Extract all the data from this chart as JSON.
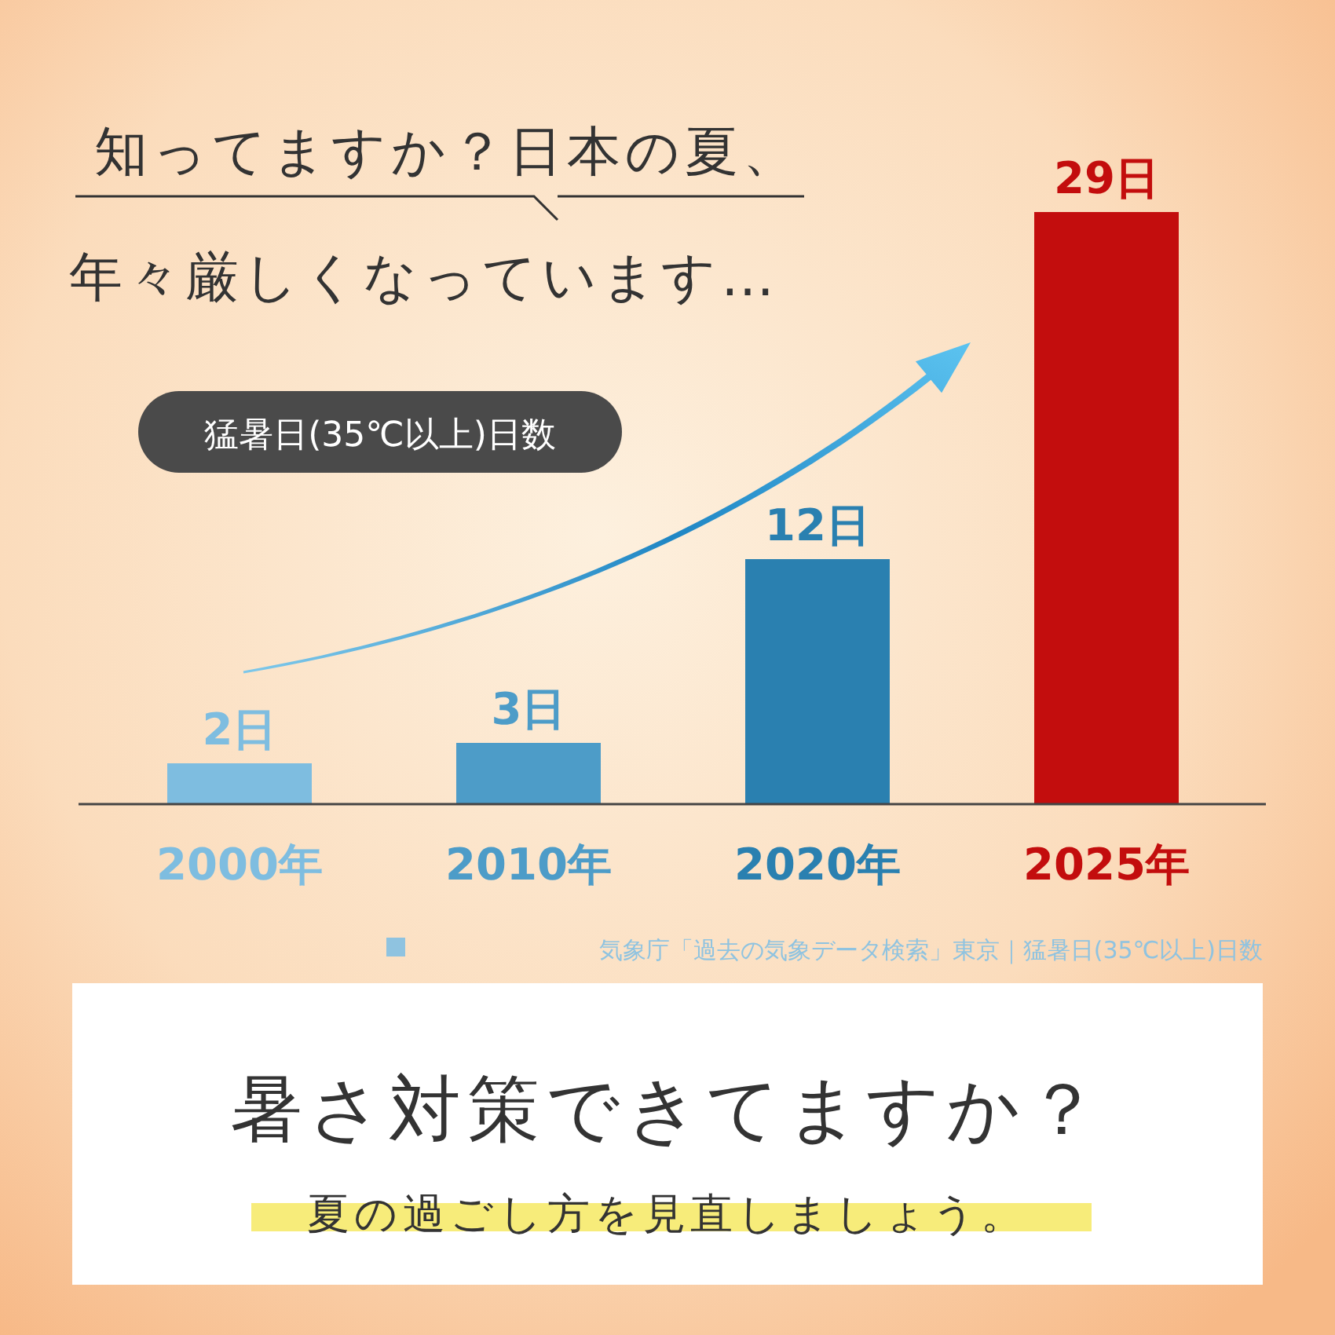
{
  "chart_data": {
    "type": "bar",
    "title": "知ってますか？日本の夏、",
    "subtitle": "年々厳しくなっています…",
    "ylabel": "猛暑日(35℃以上)日数",
    "categories": [
      "2000年",
      "2010年",
      "2020年",
      "2025年"
    ],
    "values": [
      2,
      3,
      12,
      29
    ],
    "colors": [
      "#7ebde0",
      "#4d9cc8",
      "#2a80b0",
      "#c30d0d"
    ],
    "value_labels": [
      "2日",
      "3日",
      "12日",
      "29日"
    ],
    "annotations": [
      "気象庁「過去の気象データ検索」東京｜猛暑日(35℃以上)日数",
      "暑さ対策できてますか？",
      "夏の過ごし方を見直しましょう。"
    ]
  }
}
